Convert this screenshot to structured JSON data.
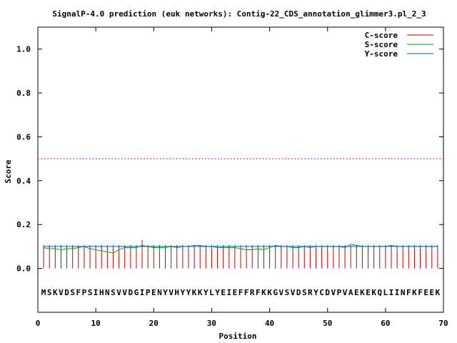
{
  "chart_data": {
    "type": "line",
    "title": "SignalP-4.0 prediction (euk networks): Contig-22_CDS_annotation_glimmer3.pl_2_3",
    "xlabel": "Position",
    "ylabel": "Score",
    "xlim": [
      0,
      70
    ],
    "ylim": [
      -0.2,
      1.1
    ],
    "xticks": [
      0,
      10,
      20,
      30,
      40,
      50,
      60,
      70
    ],
    "yticks": [
      0.0,
      0.2,
      0.4,
      0.6,
      0.8,
      1.0
    ],
    "xtick_labels": [
      "0",
      "10",
      "20",
      "30",
      "40",
      "50",
      "60",
      "70"
    ],
    "ytick_labels": [
      "0.0",
      "0.2",
      "0.4",
      "0.6",
      "0.8",
      "1.0"
    ],
    "grid": false,
    "legend_position": "top-right",
    "threshold": {
      "value": 0.5,
      "color": "#cc00cc"
    },
    "sequence": "MSKVDSFPSIHNSVVDGIPENYVHYYKKYLYEIEFFRFKKGVSVDSRYCDVPVAEKEKQLIINFKFEEK",
    "series": [
      {
        "name": "C-score",
        "style": "impulse",
        "color": "#cc0000",
        "values": [
          0.1,
          0.1,
          0.1,
          0.1,
          0.1,
          0.1,
          0.1,
          0.1,
          0.1,
          0.1,
          0.1,
          0.1,
          0.1,
          0.1,
          0.1,
          0.1,
          0.1,
          0.13,
          0.1,
          0.1,
          0.1,
          0.1,
          0.1,
          0.1,
          0.1,
          0.1,
          0.1,
          0.1,
          0.1,
          0.1,
          0.1,
          0.1,
          0.1,
          0.1,
          0.1,
          0.1,
          0.1,
          0.1,
          0.1,
          0.1,
          0.1,
          0.1,
          0.1,
          0.1,
          0.1,
          0.1,
          0.1,
          0.1,
          0.1,
          0.1,
          0.1,
          0.1,
          0.1,
          0.1,
          0.1,
          0.1,
          0.1,
          0.1,
          0.1,
          0.1,
          0.1,
          0.1,
          0.1,
          0.1,
          0.1,
          0.1,
          0.1,
          0.1,
          0.1
        ]
      },
      {
        "name": "S-score",
        "style": "line",
        "color": "#00aa00",
        "values": [
          0.095,
          0.09,
          0.09,
          0.085,
          0.09,
          0.09,
          0.095,
          0.1,
          0.09,
          0.085,
          0.08,
          0.075,
          0.07,
          0.085,
          0.095,
          0.095,
          0.095,
          0.105,
          0.1,
          0.095,
          0.095,
          0.095,
          0.1,
          0.095,
          0.1,
          0.1,
          0.105,
          0.105,
          0.1,
          0.1,
          0.095,
          0.095,
          0.095,
          0.095,
          0.09,
          0.085,
          0.085,
          0.09,
          0.085,
          0.095,
          0.105,
          0.1,
          0.1,
          0.095,
          0.095,
          0.1,
          0.095,
          0.1,
          0.1,
          0.1,
          0.1,
          0.1,
          0.095,
          0.11,
          0.105,
          0.1,
          0.1,
          0.1,
          0.1,
          0.1,
          0.105,
          0.1,
          0.1,
          0.1,
          0.1,
          0.1,
          0.1,
          0.1,
          0.1
        ]
      },
      {
        "name": "Y-score",
        "style": "line",
        "color": "#0060c0",
        "values": [
          0.1,
          0.1,
          0.1,
          0.1,
          0.1,
          0.1,
          0.1,
          0.1,
          0.1,
          0.1,
          0.1,
          0.1,
          0.1,
          0.1,
          0.1,
          0.1,
          0.1,
          0.1,
          0.1,
          0.1,
          0.1,
          0.1,
          0.1,
          0.1,
          0.1,
          0.1,
          0.1,
          0.1,
          0.1,
          0.1,
          0.1,
          0.1,
          0.1,
          0.1,
          0.1,
          0.1,
          0.1,
          0.1,
          0.1,
          0.1,
          0.1,
          0.1,
          0.1,
          0.1,
          0.1,
          0.1,
          0.1,
          0.1,
          0.1,
          0.1,
          0.1,
          0.1,
          0.1,
          0.1,
          0.1,
          0.1,
          0.1,
          0.1,
          0.1,
          0.1,
          0.1,
          0.1,
          0.1,
          0.1,
          0.1,
          0.1,
          0.1,
          0.1,
          0.1
        ]
      }
    ]
  }
}
